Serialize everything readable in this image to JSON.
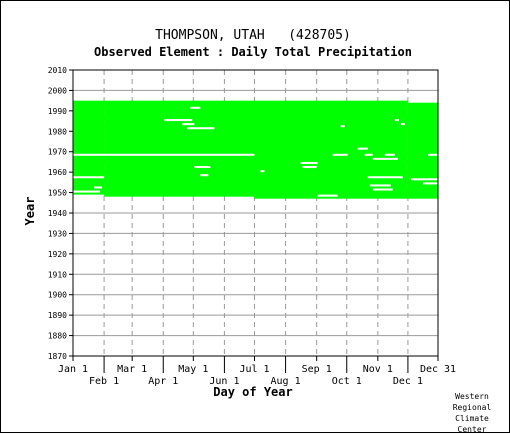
{
  "chart_data": {
    "type": "heatmap",
    "title": "THOMPSON, UTAH   (428705)",
    "subtitle": "Observed Element : Daily Total Precipitation",
    "xlabel": "Day of Year",
    "ylabel": "Year",
    "xlim": [
      1,
      365
    ],
    "ylim": [
      1870,
      2010
    ],
    "y_ticks": [
      1870,
      1880,
      1890,
      1900,
      1910,
      1920,
      1930,
      1940,
      1950,
      1960,
      1970,
      1980,
      1990,
      2000,
      2010
    ],
    "x_ticks": [
      {
        "label": "Jan 1",
        "day": 1
      },
      {
        "label": "Feb 1",
        "day": 32
      },
      {
        "label": "Mar 1",
        "day": 60
      },
      {
        "label": "Apr 1",
        "day": 91
      },
      {
        "label": "May 1",
        "day": 121
      },
      {
        "label": "Jun 1",
        "day": 152
      },
      {
        "label": "Jul 1",
        "day": 182
      },
      {
        "label": "Aug 1",
        "day": 213
      },
      {
        "label": "Sep 1",
        "day": 244
      },
      {
        "label": "Oct 1",
        "day": 274
      },
      {
        "label": "Nov 1",
        "day": 305
      },
      {
        "label": "Dec 1",
        "day": 335
      },
      {
        "label": "Dec 31",
        "day": 365
      }
    ],
    "grid": true,
    "coverage_color": "#00ff00",
    "coverage": [
      {
        "day_start": 1,
        "day_end": 32,
        "year_start": 1949,
        "year_end": 1994
      },
      {
        "day_start": 32,
        "day_end": 182,
        "year_start": 1948,
        "year_end": 1994
      },
      {
        "day_start": 182,
        "day_end": 335,
        "year_start": 1947,
        "year_end": 1994
      },
      {
        "day_start": 335,
        "day_end": 365,
        "year_start": 1947,
        "year_end": 1993
      }
    ],
    "gaps": [
      {
        "day_start": 1,
        "day_end": 182,
        "year": 1968
      },
      {
        "day_start": 260,
        "day_end": 275,
        "year": 1968
      },
      {
        "day_start": 355,
        "day_end": 365,
        "year": 1968
      },
      {
        "day_start": 1,
        "day_end": 32,
        "year": 1957
      },
      {
        "day_start": 1,
        "day_end": 28,
        "year": 1950
      },
      {
        "day_start": 22,
        "day_end": 30,
        "year": 1952
      },
      {
        "day_start": 92,
        "day_end": 120,
        "year": 1985
      },
      {
        "day_start": 110,
        "day_end": 122,
        "year": 1983
      },
      {
        "day_start": 115,
        "day_end": 142,
        "year": 1981
      },
      {
        "day_start": 118,
        "day_end": 128,
        "year": 1991
      },
      {
        "day_start": 122,
        "day_end": 138,
        "year": 1962
      },
      {
        "day_start": 128,
        "day_end": 136,
        "year": 1958
      },
      {
        "day_start": 188,
        "day_end": 192,
        "year": 1960
      },
      {
        "day_start": 228,
        "day_end": 245,
        "year": 1964
      },
      {
        "day_start": 230,
        "day_end": 244,
        "year": 1962
      },
      {
        "day_start": 245,
        "day_end": 265,
        "year": 1948
      },
      {
        "day_start": 285,
        "day_end": 295,
        "year": 1971
      },
      {
        "day_start": 292,
        "day_end": 300,
        "year": 1968
      },
      {
        "day_start": 300,
        "day_end": 325,
        "year": 1966
      },
      {
        "day_start": 312,
        "day_end": 322,
        "year": 1968
      },
      {
        "day_start": 295,
        "day_end": 330,
        "year": 1957
      },
      {
        "day_start": 297,
        "day_end": 318,
        "year": 1953
      },
      {
        "day_start": 300,
        "day_end": 320,
        "year": 1951
      },
      {
        "day_start": 338,
        "day_end": 365,
        "year": 1956
      },
      {
        "day_start": 350,
        "day_end": 365,
        "year": 1954
      },
      {
        "day_start": 328,
        "day_end": 332,
        "year": 1983
      },
      {
        "day_start": 322,
        "day_end": 326,
        "year": 1985
      },
      {
        "day_start": 268,
        "day_end": 272,
        "year": 1982
      }
    ],
    "credit": [
      "Western",
      "Regional",
      "Climate",
      "Center"
    ]
  }
}
